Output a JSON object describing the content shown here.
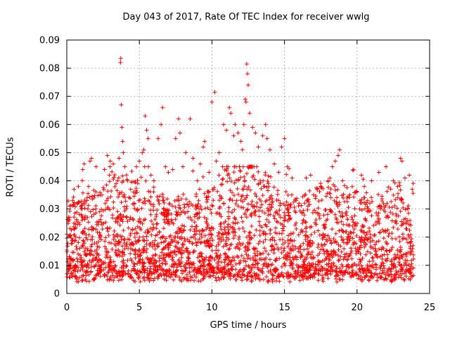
{
  "chart_data": {
    "type": "scatter",
    "title": "Day 043 of 2017, Rate Of TEC Index for receiver wwlg",
    "xlabel": "GPS time / hours",
    "ylabel": "ROTI / TECUs",
    "xlim": [
      0,
      25
    ],
    "ylim": [
      0,
      0.09
    ],
    "x_ticks": [
      0,
      5,
      10,
      15,
      20,
      25
    ],
    "y_ticks": [
      0,
      0.01,
      0.02,
      0.03,
      0.04,
      0.05,
      0.06,
      0.07,
      0.08,
      0.09
    ],
    "x_tick_labels": [
      "0",
      "5",
      "10",
      "15",
      "20",
      "25"
    ],
    "y_tick_labels": [
      "0",
      "0.01",
      "0.02",
      "0.03",
      "0.04",
      "0.05",
      "0.06",
      "0.07",
      "0.08",
      "0.09"
    ],
    "grid": true,
    "marker": "+",
    "color": "#ff0000",
    "series": [
      {
        "name": "ROTI",
        "points": [
          [
            0.0,
            0.021
          ],
          [
            0.2,
            0.031
          ],
          [
            0.4,
            0.033
          ],
          [
            0.5,
            0.037
          ],
          [
            0.7,
            0.032
          ],
          [
            0.8,
            0.038
          ],
          [
            1.0,
            0.028
          ],
          [
            1.1,
            0.044
          ],
          [
            1.2,
            0.046
          ],
          [
            1.5,
            0.038
          ],
          [
            1.6,
            0.047
          ],
          [
            1.7,
            0.048
          ],
          [
            2.0,
            0.03
          ],
          [
            2.3,
            0.035
          ],
          [
            2.6,
            0.044
          ],
          [
            2.8,
            0.049
          ],
          [
            3.0,
            0.047
          ],
          [
            3.2,
            0.046
          ],
          [
            3.5,
            0.04
          ],
          [
            3.6,
            0.048
          ],
          [
            3.7,
            0.082
          ],
          [
            3.72,
            0.0835
          ],
          [
            3.75,
            0.067
          ],
          [
            3.8,
            0.059
          ],
          [
            3.85,
            0.054
          ],
          [
            3.9,
            0.05
          ],
          [
            4.0,
            0.045
          ],
          [
            4.2,
            0.04
          ],
          [
            4.4,
            0.037
          ],
          [
            4.6,
            0.036
          ],
          [
            4.8,
            0.045
          ],
          [
            5.0,
            0.047
          ],
          [
            5.2,
            0.05
          ],
          [
            5.3,
            0.051
          ],
          [
            5.4,
            0.063
          ],
          [
            5.5,
            0.058
          ],
          [
            5.6,
            0.055
          ],
          [
            5.8,
            0.042
          ],
          [
            6.0,
            0.04
          ],
          [
            6.3,
            0.055
          ],
          [
            6.5,
            0.06
          ],
          [
            6.6,
            0.066
          ],
          [
            6.8,
            0.045
          ],
          [
            7.0,
            0.043
          ],
          [
            7.3,
            0.044
          ],
          [
            7.5,
            0.055
          ],
          [
            7.7,
            0.062
          ],
          [
            7.8,
            0.057
          ],
          [
            8.0,
            0.045
          ],
          [
            8.2,
            0.05
          ],
          [
            8.5,
            0.062
          ],
          [
            8.7,
            0.048
          ],
          [
            9.0,
            0.04
          ],
          [
            9.2,
            0.046
          ],
          [
            9.4,
            0.052
          ],
          [
            9.5,
            0.054
          ],
          [
            9.8,
            0.043
          ],
          [
            10.0,
            0.068
          ],
          [
            10.2,
            0.0715
          ],
          [
            10.3,
            0.047
          ],
          [
            10.5,
            0.05
          ],
          [
            10.8,
            0.06
          ],
          [
            11.0,
            0.058
          ],
          [
            11.2,
            0.066
          ],
          [
            11.3,
            0.064
          ],
          [
            11.5,
            0.056
          ],
          [
            11.6,
            0.06
          ],
          [
            11.8,
            0.057
          ],
          [
            12.0,
            0.054
          ],
          [
            12.1,
            0.051
          ],
          [
            12.2,
            0.06
          ],
          [
            12.3,
            0.069
          ],
          [
            12.35,
            0.068
          ],
          [
            12.4,
            0.0815
          ],
          [
            12.45,
            0.078
          ],
          [
            12.5,
            0.074
          ],
          [
            12.6,
            0.064
          ],
          [
            12.8,
            0.059
          ],
          [
            13.0,
            0.057
          ],
          [
            13.2,
            0.052
          ],
          [
            13.5,
            0.056
          ],
          [
            13.7,
            0.06
          ],
          [
            13.8,
            0.055
          ],
          [
            14.0,
            0.051
          ],
          [
            14.3,
            0.046
          ],
          [
            14.6,
            0.043
          ],
          [
            14.8,
            0.052
          ],
          [
            15.0,
            0.055
          ],
          [
            15.2,
            0.045
          ],
          [
            15.5,
            0.035
          ],
          [
            15.8,
            0.033
          ],
          [
            16.0,
            0.032
          ],
          [
            16.5,
            0.041
          ],
          [
            16.8,
            0.042
          ],
          [
            17.0,
            0.035
          ],
          [
            17.5,
            0.038
          ],
          [
            18.0,
            0.04
          ],
          [
            18.3,
            0.045
          ],
          [
            18.5,
            0.047
          ],
          [
            18.7,
            0.049
          ],
          [
            18.8,
            0.051
          ],
          [
            19.0,
            0.04
          ],
          [
            19.5,
            0.035
          ],
          [
            20.0,
            0.036
          ],
          [
            20.3,
            0.042
          ],
          [
            20.5,
            0.038
          ],
          [
            21.0,
            0.04
          ],
          [
            21.5,
            0.043
          ],
          [
            22.0,
            0.045
          ],
          [
            22.5,
            0.04
          ],
          [
            22.8,
            0.038
          ],
          [
            23.0,
            0.048
          ],
          [
            23.1,
            0.047
          ],
          [
            23.3,
            0.041
          ],
          [
            23.6,
            0.042
          ],
          [
            23.8,
            0.037
          ]
        ]
      }
    ]
  }
}
